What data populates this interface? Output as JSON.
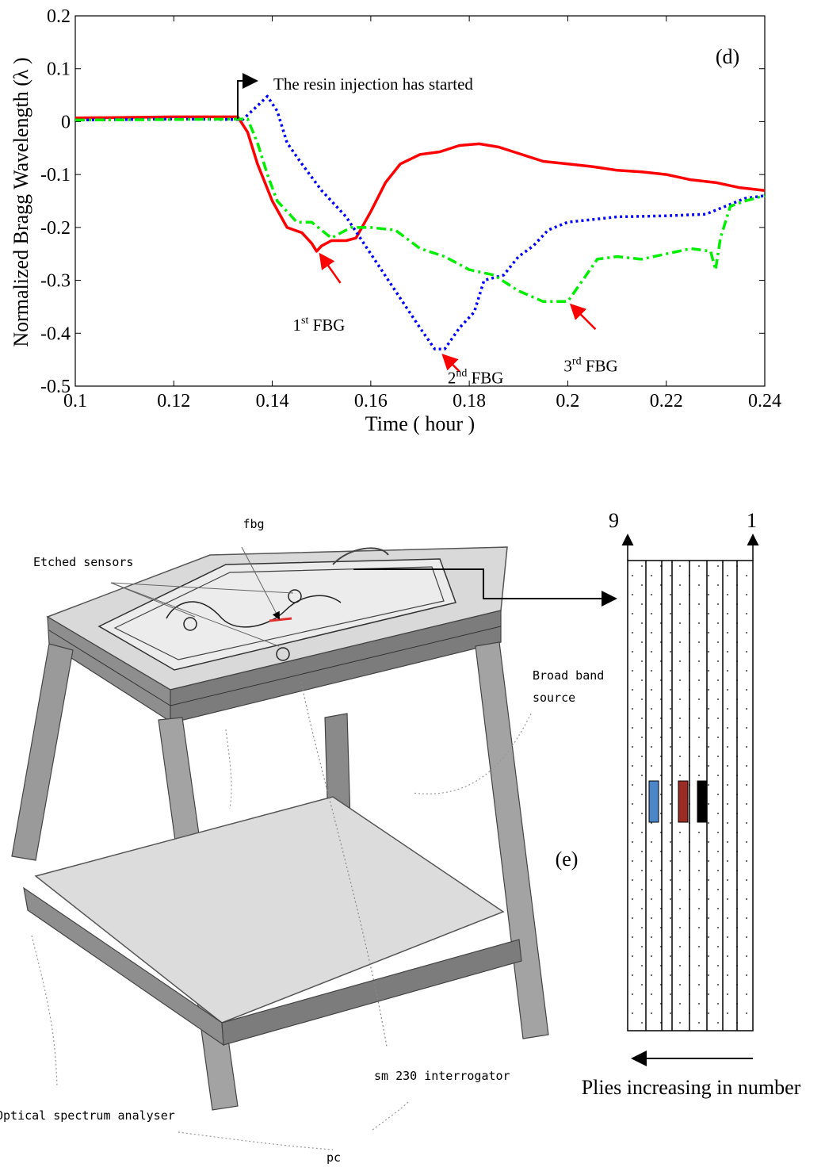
{
  "chart_data": {
    "type": "line",
    "panel_label": "(d)",
    "xlabel": "Time ( hour )",
    "ylabel": "Normalized Bragg Wavelength (λ )",
    "xlim": [
      0.1,
      0.24
    ],
    "ylim": [
      -0.5,
      0.2
    ],
    "xticks": [
      "0.1",
      "0.12",
      "0.14",
      "0.16",
      "0.18",
      "0.2",
      "0.22",
      "0.24"
    ],
    "yticks": [
      "0.2",
      "0.1",
      "0",
      "-0.1",
      "-0.2",
      "-0.3",
      "-0.4",
      "-0.5"
    ],
    "grid": false,
    "annotation": "The resin injection has started",
    "series": [
      {
        "name": "1st FBG",
        "color": "#ff0000",
        "style": "solid",
        "x": [
          0.1,
          0.12,
          0.133,
          0.135,
          0.137,
          0.14,
          0.143,
          0.146,
          0.148,
          0.149,
          0.15,
          0.152,
          0.155,
          0.157,
          0.16,
          0.163,
          0.166,
          0.17,
          0.174,
          0.178,
          0.182,
          0.186,
          0.19,
          0.195,
          0.2,
          0.205,
          0.21,
          0.215,
          0.22,
          0.225,
          0.23,
          0.235,
          0.24
        ],
        "values": [
          0.007,
          0.009,
          0.009,
          -0.02,
          -0.08,
          -0.15,
          -0.2,
          -0.21,
          -0.23,
          -0.245,
          -0.235,
          -0.225,
          -0.225,
          -0.22,
          -0.17,
          -0.115,
          -0.08,
          -0.062,
          -0.057,
          -0.045,
          -0.042,
          -0.048,
          -0.06,
          -0.075,
          -0.08,
          -0.085,
          -0.092,
          -0.095,
          -0.1,
          -0.11,
          -0.115,
          -0.125,
          -0.13
        ]
      },
      {
        "name": "2nd FBG",
        "color": "#0000ff",
        "style": "dotted",
        "x": [
          0.1,
          0.12,
          0.134,
          0.137,
          0.139,
          0.141,
          0.143,
          0.146,
          0.15,
          0.155,
          0.16,
          0.165,
          0.17,
          0.173,
          0.175,
          0.178,
          0.181,
          0.183,
          0.187,
          0.19,
          0.193,
          0.196,
          0.2,
          0.205,
          0.21,
          0.22,
          0.228,
          0.232,
          0.236,
          0.24
        ],
        "values": [
          0.003,
          0.005,
          0.004,
          0.03,
          0.048,
          0.02,
          -0.04,
          -0.08,
          -0.13,
          -0.18,
          -0.25,
          -0.32,
          -0.39,
          -0.43,
          -0.43,
          -0.39,
          -0.36,
          -0.3,
          -0.29,
          -0.255,
          -0.235,
          -0.205,
          -0.19,
          -0.185,
          -0.18,
          -0.178,
          -0.175,
          -0.16,
          -0.145,
          -0.14
        ]
      },
      {
        "name": "3rd FBG",
        "color": "#00ee00",
        "style": "dashdot",
        "x": [
          0.1,
          0.12,
          0.135,
          0.137,
          0.139,
          0.141,
          0.145,
          0.148,
          0.152,
          0.156,
          0.16,
          0.165,
          0.17,
          0.175,
          0.18,
          0.185,
          0.19,
          0.195,
          0.2,
          0.203,
          0.206,
          0.21,
          0.215,
          0.22,
          0.225,
          0.229,
          0.23,
          0.231,
          0.233,
          0.236,
          0.24
        ],
        "values": [
          0.003,
          0.004,
          0.005,
          -0.04,
          -0.1,
          -0.15,
          -0.19,
          -0.19,
          -0.22,
          -0.2,
          -0.2,
          -0.205,
          -0.24,
          -0.255,
          -0.28,
          -0.29,
          -0.32,
          -0.34,
          -0.34,
          -0.3,
          -0.26,
          -0.255,
          -0.26,
          -0.25,
          -0.24,
          -0.245,
          -0.28,
          -0.22,
          -0.16,
          -0.15,
          -0.14
        ]
      }
    ],
    "point_labels": [
      {
        "label": "1",
        "sup": "st",
        "rest": " FBG",
        "at_x": 0.149,
        "at_y": -0.245
      },
      {
        "label": "2",
        "sup": "nd",
        "rest": " FBG",
        "at_x": 0.174,
        "at_y": -0.435
      },
      {
        "label": "3",
        "sup": "rd",
        "rest": " FBG",
        "at_x": 0.2,
        "at_y": -0.34
      }
    ]
  },
  "setup_figure": {
    "labels": {
      "fbg": "fbg",
      "etched": "Etched sensors",
      "broadband": [
        "Broad band",
        "source"
      ],
      "interrogator": "sm 230 interrogator",
      "osa": "Optical spectrum analyser",
      "pc": "pc"
    }
  },
  "ply_figure": {
    "panel_label": "(e)",
    "ply_left": "9",
    "ply_right": "1",
    "caption": "Plies increasing in number",
    "ply_count": 9,
    "sensor_colors": [
      "#4a86c8",
      "#9b2c24",
      "#000000"
    ]
  }
}
